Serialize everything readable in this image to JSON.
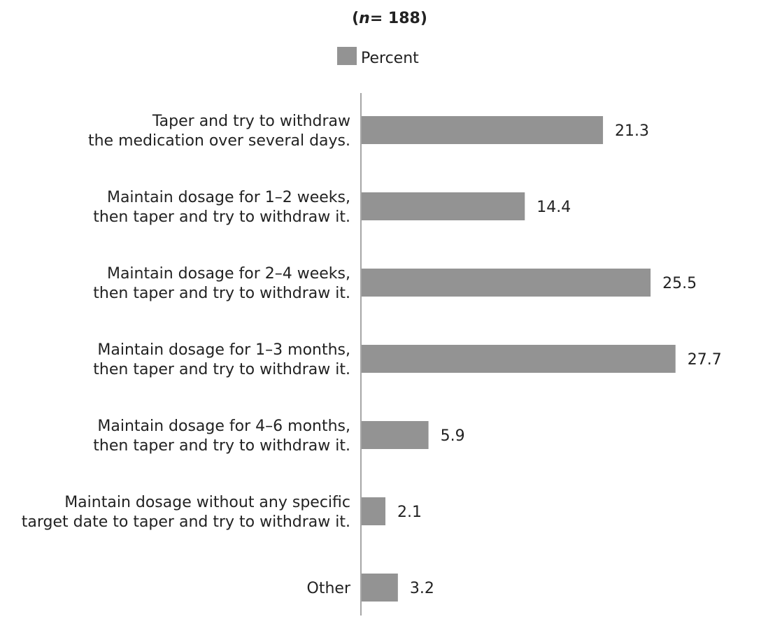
{
  "chart_data": {
    "type": "bar",
    "orientation": "horizontal",
    "title": "",
    "subtitle_n": "n",
    "subtitle_rest": "= 188)",
    "subtitle_open": "(",
    "legend": {
      "label": "Percent",
      "placement": "top-center"
    },
    "series": [
      {
        "name": "Percent",
        "color": "#939393",
        "values": [
          21.3,
          14.4,
          25.5,
          27.7,
          5.9,
          2.1,
          3.2
        ]
      }
    ],
    "categories": [
      [
        "Taper and try to withdraw",
        "the medication over several days."
      ],
      [
        "Maintain dosage for 1–2 weeks,",
        "then taper and try to withdraw it."
      ],
      [
        "Maintain dosage for 2–4 weeks,",
        "then taper and try to withdraw it."
      ],
      [
        "Maintain dosage for 1–3 months,",
        "then taper and try to withdraw it."
      ],
      [
        "Maintain dosage for 4–6 months,",
        "then taper and try to withdraw it."
      ],
      [
        "Maintain dosage without any specific",
        "target date to taper and try to withdraw it."
      ],
      [
        "Other"
      ]
    ],
    "value_labels": [
      "21.3",
      "14.4",
      "25.5",
      "27.7",
      "5.9",
      "2.1",
      "3.2"
    ],
    "xlim": [
      0,
      28
    ],
    "grid": false,
    "axis_color": "#888888"
  }
}
